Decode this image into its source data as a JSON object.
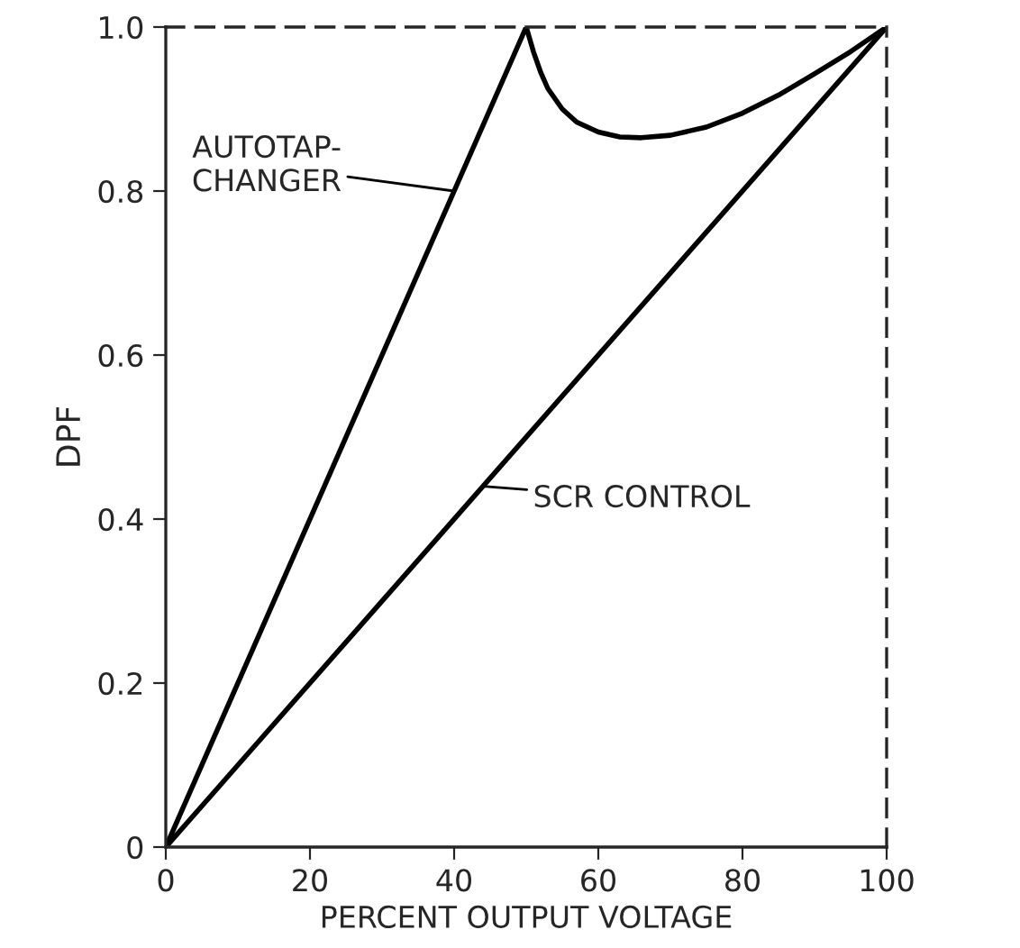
{
  "chart_data": {
    "type": "line",
    "xlabel": "PERCENT OUTPUT VOLTAGE",
    "ylabel": "DPF",
    "series": [
      {
        "color": "#000000",
        "x": [
          0,
          50,
          51,
          52,
          53,
          55,
          57,
          60,
          63,
          66,
          70,
          75,
          80,
          85,
          90,
          95,
          100
        ],
        "values": [
          0,
          1.0,
          0.97,
          0.945,
          0.925,
          0.9,
          0.884,
          0.872,
          0.866,
          0.865,
          0.868,
          0.878,
          0.895,
          0.917,
          0.943,
          0.97,
          1.0
        ]
      },
      {
        "color": "#000000",
        "x": [
          0,
          100
        ],
        "values": [
          0,
          1.0
        ]
      }
    ],
    "annotations": [
      {
        "text": "AUTOTAP-\nCHANGER",
        "x": 40,
        "y": 0.8
      },
      {
        "text": "SCR CONTROL",
        "x": 44,
        "y": 0.44
      }
    ],
    "xlim": [
      0,
      100
    ],
    "ylim": [
      0,
      1.0
    ],
    "xticks": [
      0,
      20,
      40,
      60,
      80,
      100
    ],
    "yticks": [
      0,
      0.2,
      0.4,
      0.6,
      0.8,
      {
        "value": 1.0,
        "label": "1.0"
      }
    ],
    "grid": false,
    "legend": false,
    "line_style": "solid",
    "marker": "none"
  }
}
